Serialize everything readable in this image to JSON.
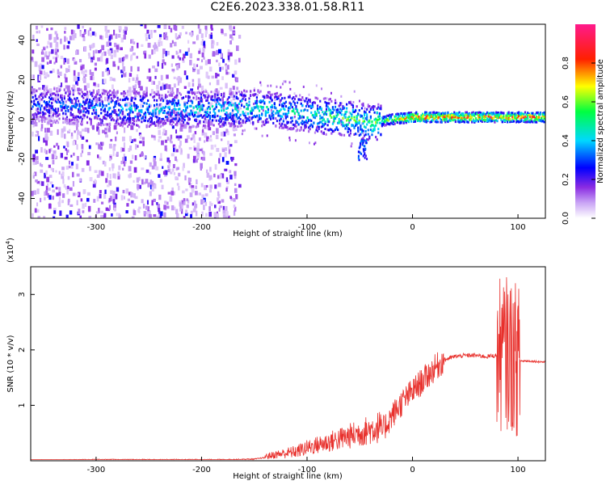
{
  "title": "C2E6.2023.338.01.58.R11",
  "chart_data": [
    {
      "type": "heatmap",
      "xlabel": "Height of straight line (km)",
      "ylabel": "Frequency (Hz)",
      "xlim": [
        -362,
        126
      ],
      "ylim": [
        -50,
        48
      ],
      "x_ticks": [
        -300,
        -200,
        -100,
        0,
        100
      ],
      "y_ticks": [
        -40,
        -20,
        0,
        20,
        40
      ],
      "colorbar": {
        "label": "Normalized spectral amplitude",
        "range": [
          0,
          1
        ],
        "ticks": [
          0.0,
          0.2,
          0.4,
          0.6,
          0.8
        ],
        "colors": [
          "#ffffff",
          "#a020f0",
          "#0000ff",
          "#00e0ff",
          "#00ff00",
          "#ffff00",
          "#ff0000",
          "#ff1493"
        ]
      },
      "ridge": [
        {
          "x": -340,
          "freq": 7,
          "amp": 0.35
        },
        {
          "x": -300,
          "freq": 6,
          "amp": 0.4
        },
        {
          "x": -260,
          "freq": 5,
          "amp": 0.45
        },
        {
          "x": -220,
          "freq": 5,
          "amp": 0.45
        },
        {
          "x": -170,
          "freq": 5,
          "amp": 0.5
        },
        {
          "x": -150,
          "freq": 6,
          "amp": 0.5
        },
        {
          "x": -120,
          "freq": 4,
          "amp": 0.5
        },
        {
          "x": -90,
          "freq": 2,
          "amp": 0.55
        },
        {
          "x": -60,
          "freq": 0,
          "amp": 0.6
        },
        {
          "x": -40,
          "freq": -2,
          "amp": 0.6
        },
        {
          "x": -20,
          "freq": 0,
          "amp": 0.75
        },
        {
          "x": 0,
          "freq": 1,
          "amp": 0.9
        },
        {
          "x": 50,
          "freq": 1,
          "amp": 0.92
        },
        {
          "x": 100,
          "freq": 1,
          "amp": 0.9
        },
        {
          "x": 126,
          "freq": 1,
          "amp": 0.9
        }
      ]
    },
    {
      "type": "line",
      "xlabel": "Height of straight line (km)",
      "ylabel": "SNR (10 * v/v)",
      "multiplier_label": "(x10",
      "multiplier_exp": "4",
      "multiplier_close": ")",
      "xlim": [
        -362,
        126
      ],
      "ylim": [
        0,
        3.5
      ],
      "x_ticks": [
        -300,
        -200,
        -100,
        0,
        100
      ],
      "y_ticks": [
        1,
        2,
        3
      ],
      "color": "#e8302c",
      "series": [
        {
          "x": [
            -362,
            -300,
            -250,
            -200,
            -180,
            -150,
            -130,
            -110,
            -100,
            -80,
            -60,
            -40,
            -30,
            -20,
            -10,
            0,
            10,
            20,
            30,
            40,
            50,
            60,
            70,
            80,
            90,
            100,
            110,
            126
          ],
          "values": [
            0.01,
            0.02,
            0.02,
            0.02,
            0.02,
            0.03,
            0.08,
            0.12,
            0.18,
            0.26,
            0.35,
            0.45,
            0.5,
            0.8,
            1.05,
            1.25,
            1.45,
            1.65,
            1.82,
            1.88,
            1.9,
            1.9,
            1.88,
            1.9,
            1.95,
            1.8,
            1.8,
            1.78
          ]
        }
      ]
    }
  ]
}
